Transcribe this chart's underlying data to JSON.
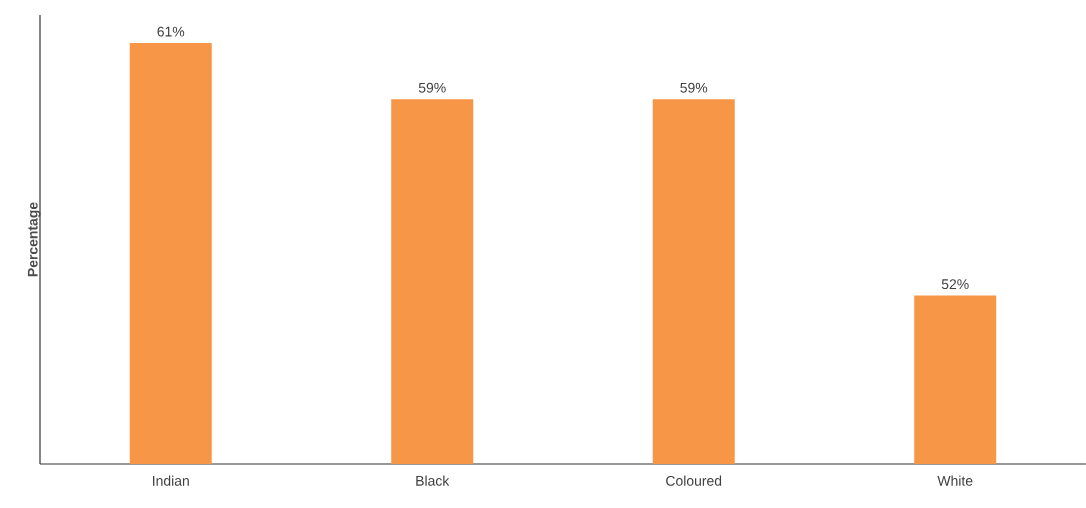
{
  "chart_data": {
    "type": "bar",
    "ylabel": "Percentage",
    "categories": [
      "Indian",
      "Black",
      "Coloured",
      "White"
    ],
    "values": [
      61,
      59,
      59,
      52
    ],
    "value_labels": [
      "61%",
      "59%",
      "59%",
      "52%"
    ],
    "color": "#f79646",
    "ylim": [
      46,
      62
    ],
    "tick_labels": "x"
  }
}
